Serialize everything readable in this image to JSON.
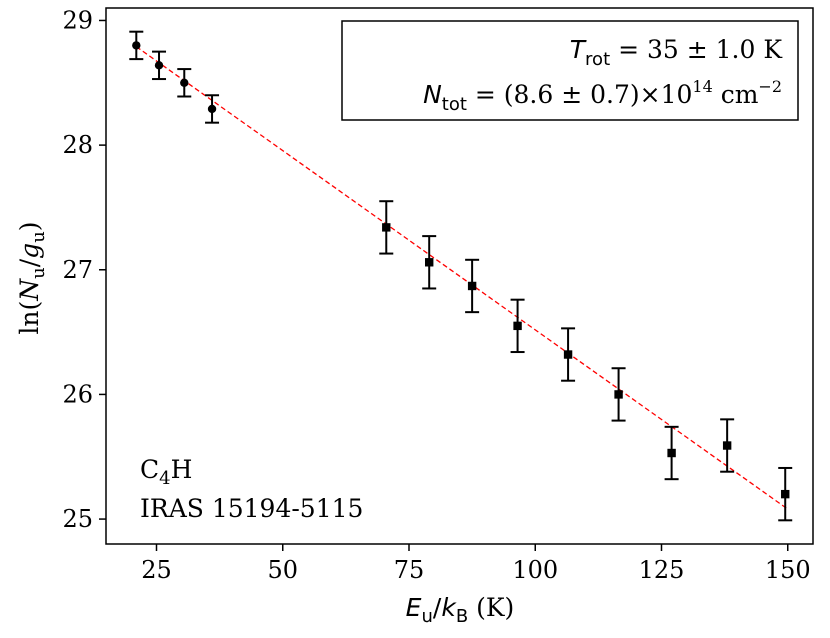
{
  "chart_data": {
    "type": "scatter",
    "title": "",
    "xlabel": {
      "sym": "E",
      "sub": "u",
      "sep": "/",
      "sym2": "k",
      "sub2": "B",
      "unit": " (K)"
    },
    "ylabel": {
      "pre": "ln(",
      "sym": "N",
      "sub": "u",
      "sep": "/",
      "sym2": "g",
      "sub2": "u",
      "post": ")"
    },
    "xlim": [
      15,
      155
    ],
    "ylim": [
      24.8,
      29.1
    ],
    "xticks": [
      25,
      50,
      75,
      100,
      125,
      150
    ],
    "yticks": [
      25,
      26,
      27,
      28,
      29
    ],
    "grid": false,
    "series": [
      {
        "marker": "circle",
        "color": "#000000",
        "points": [
          {
            "x": 21.0,
            "y": 28.8,
            "err": 0.11
          },
          {
            "x": 25.5,
            "y": 28.64,
            "err": 0.11
          },
          {
            "x": 30.5,
            "y": 28.5,
            "err": 0.11
          },
          {
            "x": 36.0,
            "y": 28.29,
            "err": 0.11
          }
        ]
      },
      {
        "marker": "square",
        "color": "#000000",
        "points": [
          {
            "x": 70.5,
            "y": 27.34,
            "err": 0.21
          },
          {
            "x": 79.0,
            "y": 27.06,
            "err": 0.21
          },
          {
            "x": 87.5,
            "y": 26.87,
            "err": 0.21
          },
          {
            "x": 96.5,
            "y": 26.55,
            "err": 0.21
          },
          {
            "x": 106.5,
            "y": 26.32,
            "err": 0.21
          },
          {
            "x": 116.5,
            "y": 26.0,
            "err": 0.21
          },
          {
            "x": 127.0,
            "y": 25.53,
            "err": 0.21
          },
          {
            "x": 138.0,
            "y": 25.59,
            "err": 0.21
          },
          {
            "x": 149.5,
            "y": 25.2,
            "err": 0.21
          }
        ]
      }
    ],
    "fit_line": {
      "x": [
        21,
        150
      ],
      "y": [
        28.79,
        25.08
      ],
      "color": "#ff0000",
      "style": "dashed"
    },
    "legend": {
      "placement": "top-right",
      "line1": {
        "sym": "T",
        "sub": "rot",
        "rest": " = 35 ± 1.0 K"
      },
      "line2": {
        "sym": "N",
        "sub": "tot",
        "rest": " = (8.6 ± 0.7)×10",
        "sup": "14",
        "unit": " cm",
        "unit_sup": "−2"
      }
    },
    "annotation": {
      "placement": "bottom-left",
      "line1_main": "C",
      "line1_sub": "4",
      "line1_end": "H",
      "line2": "IRAS 15194-5115"
    }
  }
}
